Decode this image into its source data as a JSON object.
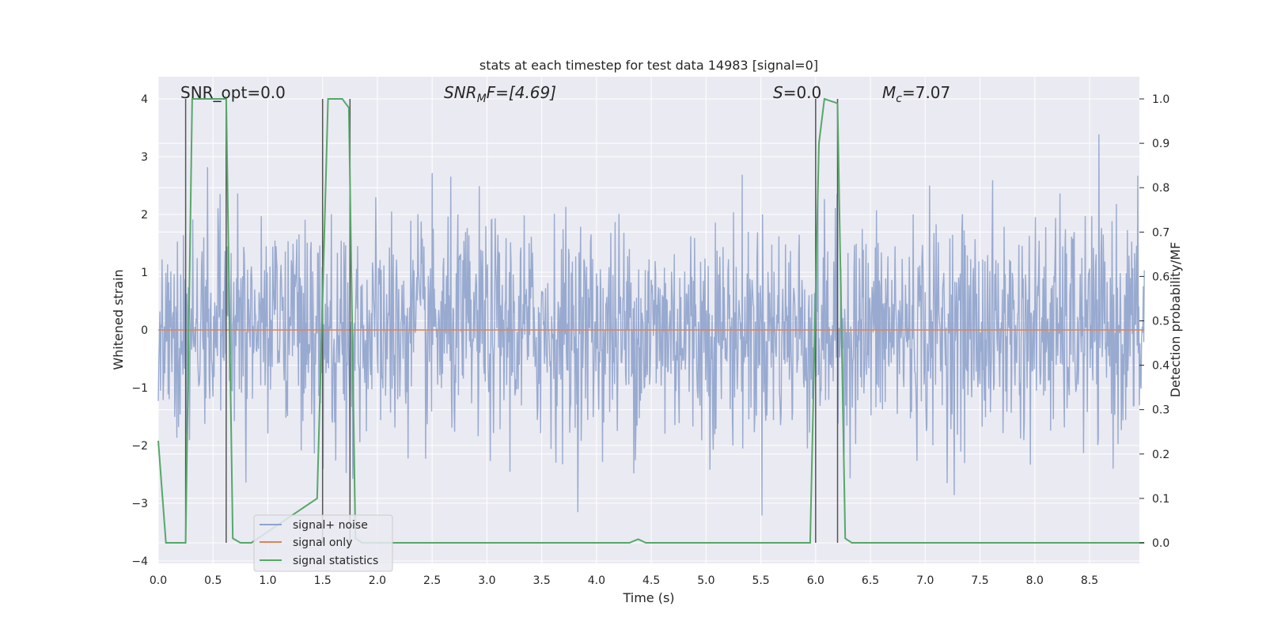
{
  "chart_data": {
    "type": "line",
    "title": "stats at each timestep for test data 14983 [signal=0]",
    "xlabel": "Time (s)",
    "ylabel": "Whitened strain",
    "y2label": "Detection probability/MF",
    "xlim": [
      0.0,
      9.0
    ],
    "ylim": [
      -4.0,
      4.0
    ],
    "y2lim": [
      0.0,
      1.0
    ],
    "x_ticks": [
      "0.0",
      "0.5",
      "1.0",
      "1.5",
      "2.0",
      "2.5",
      "3.0",
      "3.5",
      "4.0",
      "4.5",
      "5.0",
      "5.5",
      "6.0",
      "6.5",
      "7.0",
      "7.5",
      "8.0",
      "8.5"
    ],
    "y_ticks": [
      "4",
      "3",
      "2",
      "1",
      "0",
      "−1",
      "−2",
      "−3",
      "−4"
    ],
    "y2_ticks": [
      "1.0",
      "0.9",
      "0.8",
      "0.7",
      "0.6",
      "0.5",
      "0.4",
      "0.3",
      "0.2",
      "0.1",
      "0.0"
    ],
    "grid": true,
    "legend_position": "bottom-left",
    "annotations": {
      "snr_opt": "SNR_opt=0.0",
      "snr_mf_base": "SNR",
      "snr_mf_sub": "M",
      "snr_mf_rest": "F=[4.69]",
      "s_var": "S",
      "s_rest": "=0.0",
      "mc_base": "M",
      "mc_sub": "c",
      "mc_rest": "=7.07"
    },
    "series": [
      {
        "name": "signal+ noise",
        "color": "#8fa3cc",
        "note": "whitened strain noise, amplitude roughly within ±3.5"
      },
      {
        "name": "signal only",
        "color": "#dd8452",
        "x": [
          0.0,
          9.0
        ],
        "y": [
          0.0,
          0.0
        ]
      },
      {
        "name": "signal statistics",
        "color": "#55a868",
        "axis": "right",
        "x": [
          0.0,
          0.07,
          0.25,
          0.31,
          0.62,
          0.68,
          0.75,
          0.85,
          1.45,
          1.55,
          1.68,
          1.74,
          1.8,
          1.86,
          4.3,
          4.38,
          4.45,
          5.95,
          6.03,
          6.08,
          6.2,
          6.27,
          6.33,
          9.0
        ],
        "y": [
          0.23,
          0.0,
          0.0,
          1.0,
          1.0,
          0.01,
          0.0,
          0.0,
          0.1,
          1.0,
          1.0,
          0.98,
          0.01,
          0.0,
          0.0,
          0.008,
          0.0,
          0.0,
          0.9,
          1.0,
          0.99,
          0.01,
          0.0,
          0.0
        ]
      }
    ],
    "vertical_markers": [
      0.25,
      0.62,
      1.5,
      1.75,
      6.0,
      6.2
    ],
    "legend": [
      {
        "label": "signal+ noise",
        "color": "#8fa3cc"
      },
      {
        "label": "signal only",
        "color": "#dd8452"
      },
      {
        "label": "signal statistics",
        "color": "#55a868"
      }
    ]
  }
}
